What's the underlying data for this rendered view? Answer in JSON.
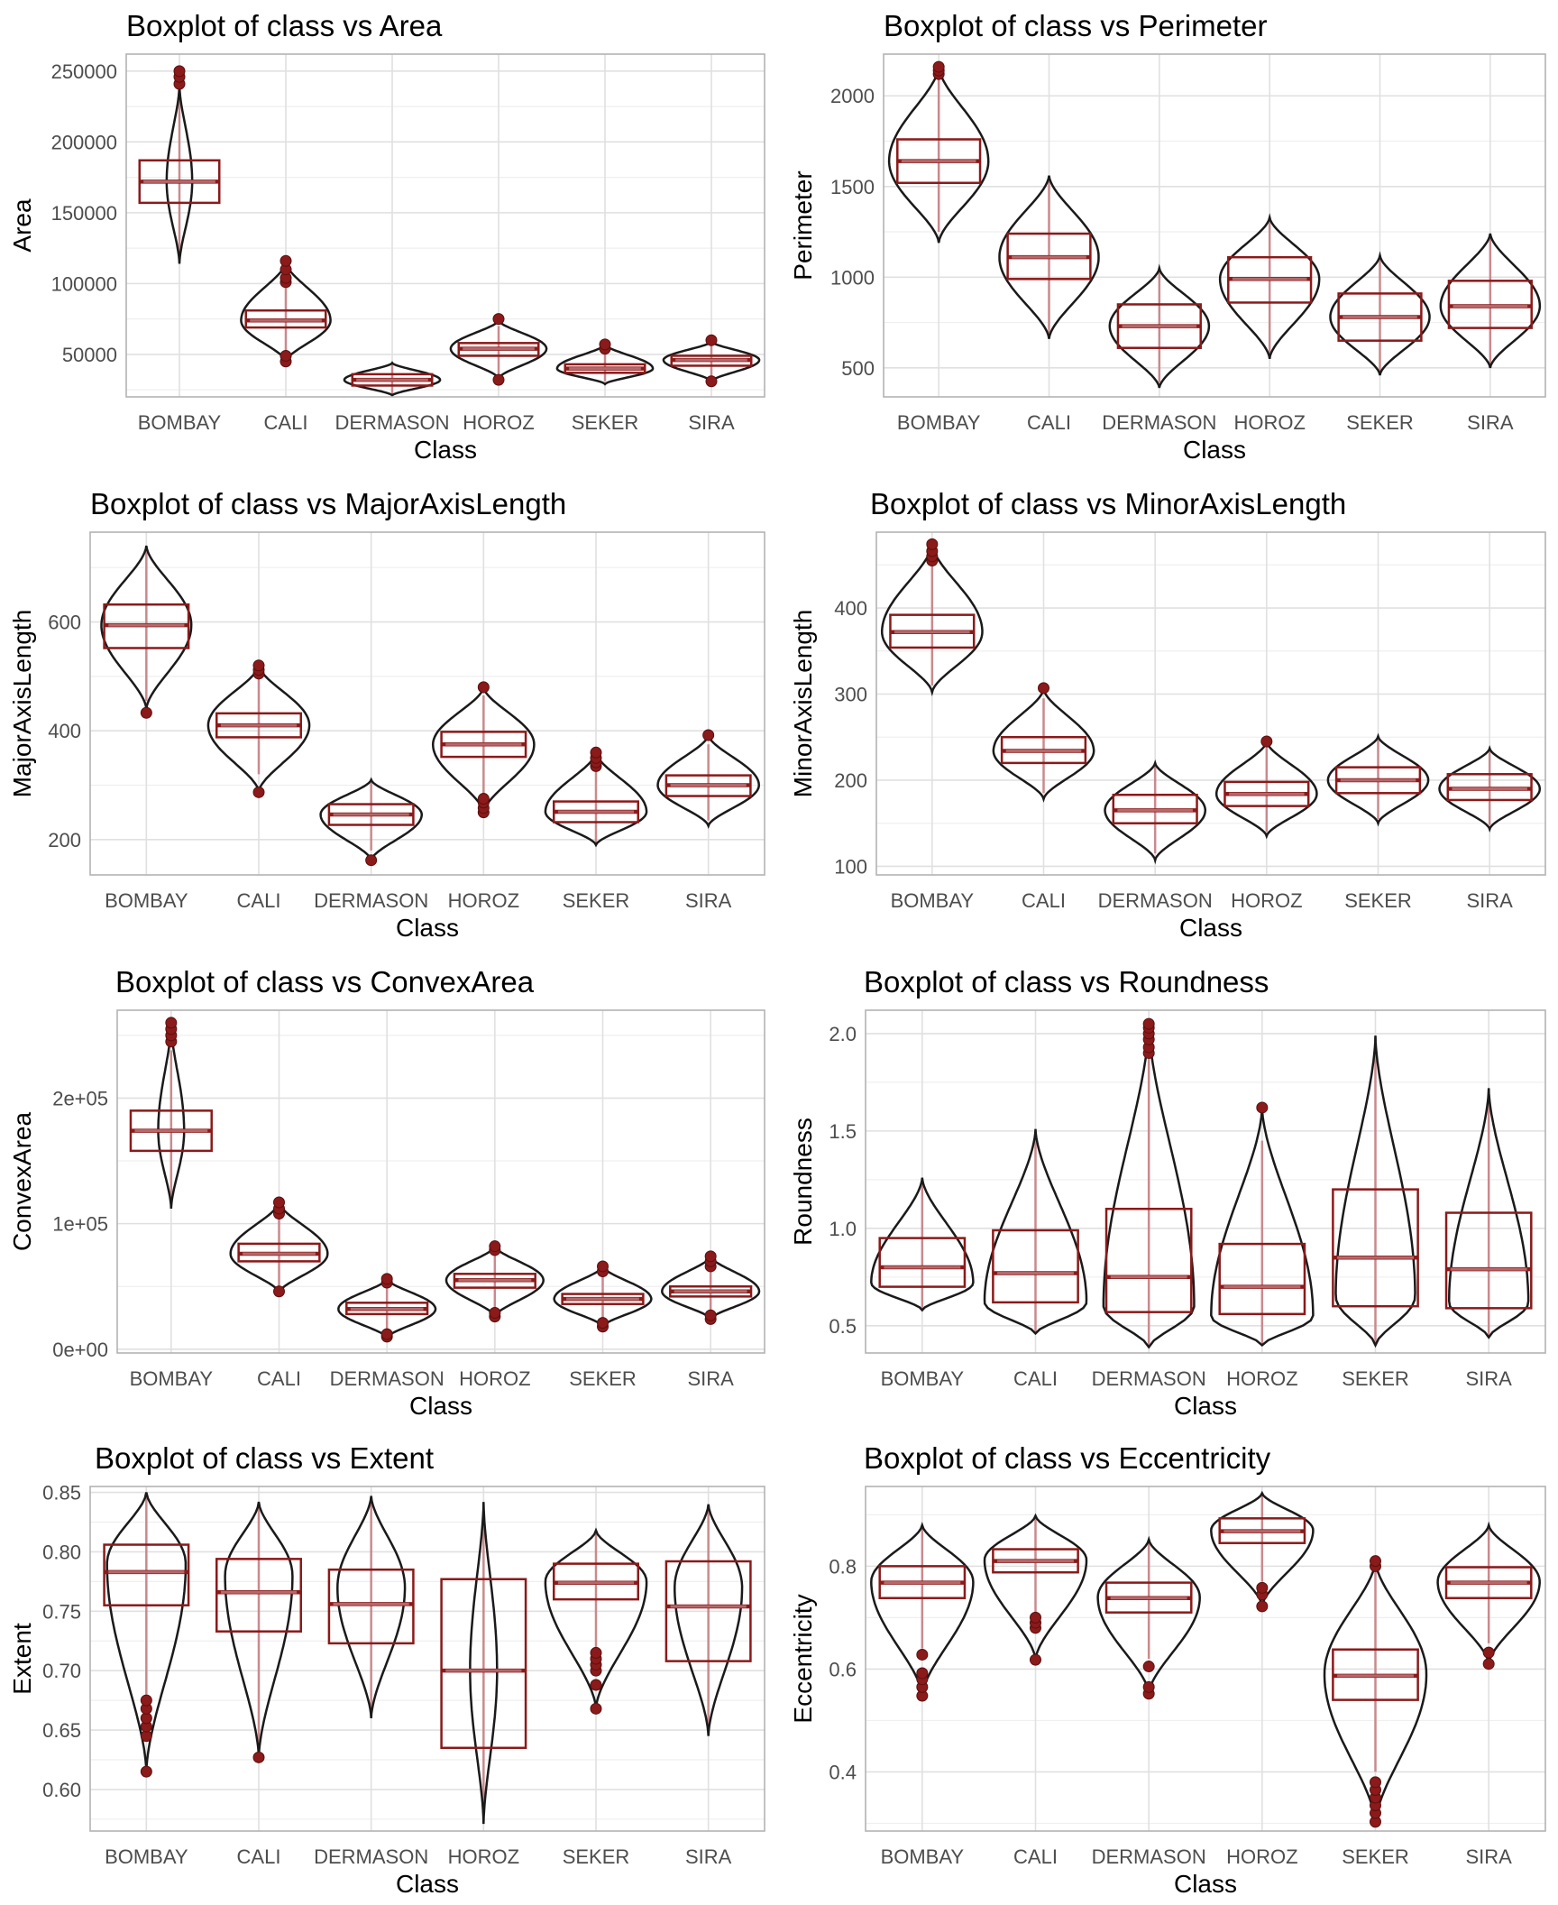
{
  "colors": {
    "box": "#8b1a1a",
    "whisker": "#c98a8e",
    "violin": "#1a1a1a",
    "grid": "#e0e0e0",
    "panel_border": "#b3b3b3"
  },
  "chart_data": [
    {
      "type": "box",
      "title": "Boxplot of class vs Area",
      "xlabel": "Class",
      "ylabel": "Area",
      "categories": [
        "BOMBAY",
        "CALI",
        "DERMASON",
        "HOROZ",
        "SEKER",
        "SIRA"
      ],
      "ylim": [
        20000,
        262000
      ],
      "yticks": [
        50000,
        100000,
        150000,
        200000,
        250000
      ],
      "ytick_labels": [
        "50000",
        "100000",
        "150000",
        "200000",
        "250000"
      ],
      "boxes": [
        {
          "q1": 157000,
          "median": 172000,
          "q3": 187000,
          "whislo": 115000,
          "whishi": 234000,
          "outliers": [
            241000,
            246000,
            250000
          ],
          "vmin": 114000,
          "vmax": 240000,
          "vmode": 172000,
          "vwidth": 0.12
        },
        {
          "q1": 69000,
          "median": 74000,
          "q3": 81000,
          "whislo": 52000,
          "whishi": 100000,
          "outliers": [
            45000,
            49000,
            101000,
            104000,
            110000,
            116000
          ],
          "vmin": 45000,
          "vmax": 115000,
          "vmode": 74000,
          "vwidth": 0.42
        },
        {
          "q1": 28000,
          "median": 32000,
          "q3": 36000,
          "whislo": 21000,
          "whishi": 43000,
          "outliers": [],
          "vmin": 21000,
          "vmax": 44000,
          "vmode": 32000,
          "vwidth": 0.45
        },
        {
          "q1": 49000,
          "median": 54000,
          "q3": 58000,
          "whislo": 35000,
          "whishi": 70000,
          "outliers": [
            32000,
            75000
          ],
          "vmin": 33000,
          "vmax": 74000,
          "vmode": 54000,
          "vwidth": 0.45
        },
        {
          "q1": 37000,
          "median": 40000,
          "q3": 43000,
          "whislo": 31000,
          "whishi": 52000,
          "outliers": [
            54000,
            57000
          ],
          "vmin": 29000,
          "vmax": 57000,
          "vmode": 40000,
          "vwidth": 0.45
        },
        {
          "q1": 42000,
          "median": 46000,
          "q3": 49000,
          "whislo": 33000,
          "whishi": 57000,
          "outliers": [
            31000,
            60000
          ],
          "vmin": 31000,
          "vmax": 59000,
          "vmode": 46000,
          "vwidth": 0.45
        }
      ]
    },
    {
      "type": "box",
      "title": "Boxplot of class vs Perimeter",
      "xlabel": "Class",
      "ylabel": "Perimeter",
      "categories": [
        "BOMBAY",
        "CALI",
        "DERMASON",
        "HOROZ",
        "SEKER",
        "SIRA"
      ],
      "ylim": [
        340,
        2230
      ],
      "yticks": [
        500,
        1000,
        1500,
        2000
      ],
      "ytick_labels": [
        "500",
        "1000",
        "1500",
        "2000"
      ],
      "boxes": [
        {
          "q1": 1520,
          "median": 1640,
          "q3": 1760,
          "whislo": 1250,
          "whishi": 2110,
          "outliers": [
            2120,
            2140,
            2160
          ],
          "vmin": 1190,
          "vmax": 2160,
          "vmode": 1640,
          "vwidth": 0.45
        },
        {
          "q1": 990,
          "median": 1110,
          "q3": 1240,
          "whislo": 690,
          "whishi": 1530,
          "outliers": [],
          "vmin": 660,
          "vmax": 1560,
          "vmode": 1110,
          "vwidth": 0.45
        },
        {
          "q1": 610,
          "median": 730,
          "q3": 850,
          "whislo": 420,
          "whishi": 1040,
          "outliers": [],
          "vmin": 390,
          "vmax": 1050,
          "vmode": 730,
          "vwidth": 0.45
        },
        {
          "q1": 860,
          "median": 990,
          "q3": 1110,
          "whislo": 580,
          "whishi": 1310,
          "outliers": [],
          "vmin": 550,
          "vmax": 1330,
          "vmode": 990,
          "vwidth": 0.45
        },
        {
          "q1": 650,
          "median": 780,
          "q3": 910,
          "whislo": 480,
          "whishi": 1100,
          "outliers": [],
          "vmin": 460,
          "vmax": 1120,
          "vmode": 780,
          "vwidth": 0.45
        },
        {
          "q1": 720,
          "median": 840,
          "q3": 980,
          "whislo": 520,
          "whishi": 1230,
          "outliers": [],
          "vmin": 500,
          "vmax": 1240,
          "vmode": 840,
          "vwidth": 0.45
        }
      ]
    },
    {
      "type": "box",
      "title": "Boxplot of class vs MajorAxisLength",
      "xlabel": "Class",
      "ylabel": "MajorAxisLength",
      "categories": [
        "BOMBAY",
        "CALI",
        "DERMASON",
        "HOROZ",
        "SEKER",
        "SIRA"
      ],
      "ylim": [
        135,
        765
      ],
      "yticks": [
        200,
        400,
        600
      ],
      "ytick_labels": [
        "200",
        "400",
        "600"
      ],
      "boxes": [
        {
          "q1": 552,
          "median": 594,
          "q3": 632,
          "whislo": 455,
          "whishi": 730,
          "outliers": [
            433
          ],
          "vmin": 440,
          "vmax": 740,
          "vmode": 594,
          "vwidth": 0.4
        },
        {
          "q1": 388,
          "median": 410,
          "q3": 432,
          "whislo": 320,
          "whishi": 500,
          "outliers": [
            287,
            505,
            512,
            520
          ],
          "vmin": 288,
          "vmax": 520,
          "vmode": 410,
          "vwidth": 0.45
        },
        {
          "q1": 227,
          "median": 246,
          "q3": 265,
          "whislo": 180,
          "whishi": 305,
          "outliers": [
            162
          ],
          "vmin": 162,
          "vmax": 310,
          "vmode": 246,
          "vwidth": 0.45
        },
        {
          "q1": 352,
          "median": 375,
          "q3": 398,
          "whislo": 285,
          "whishi": 465,
          "outliers": [
            250,
            258,
            268,
            275,
            480
          ],
          "vmin": 250,
          "vmax": 480,
          "vmode": 375,
          "vwidth": 0.45
        },
        {
          "q1": 232,
          "median": 251,
          "q3": 270,
          "whislo": 195,
          "whishi": 325,
          "outliers": [
            335,
            342,
            350,
            360
          ],
          "vmin": 190,
          "vmax": 360,
          "vmode": 251,
          "vwidth": 0.45
        },
        {
          "q1": 280,
          "median": 300,
          "q3": 318,
          "whislo": 235,
          "whishi": 375,
          "outliers": [
            392
          ],
          "vmin": 225,
          "vmax": 392,
          "vmode": 300,
          "vwidth": 0.45
        }
      ]
    },
    {
      "type": "box",
      "title": "Boxplot of class vs MinorAxisLength",
      "xlabel": "Class",
      "ylabel": "MinorAxisLength",
      "categories": [
        "BOMBAY",
        "CALI",
        "DERMASON",
        "HOROZ",
        "SEKER",
        "SIRA"
      ],
      "ylim": [
        90,
        488
      ],
      "yticks": [
        100,
        200,
        300,
        400
      ],
      "ytick_labels": [
        "100",
        "200",
        "300",
        "400"
      ],
      "boxes": [
        {
          "q1": 354,
          "median": 372,
          "q3": 392,
          "whislo": 310,
          "whishi": 450,
          "outliers": [
            455,
            460,
            466,
            474
          ],
          "vmin": 302,
          "vmax": 474,
          "vmode": 372,
          "vwidth": 0.45
        },
        {
          "q1": 220,
          "median": 234,
          "q3": 250,
          "whislo": 185,
          "whishi": 295,
          "outliers": [
            307
          ],
          "vmin": 178,
          "vmax": 306,
          "vmode": 234,
          "vwidth": 0.45
        },
        {
          "q1": 150,
          "median": 165,
          "q3": 183,
          "whislo": 115,
          "whishi": 218,
          "outliers": [],
          "vmin": 107,
          "vmax": 220,
          "vmode": 165,
          "vwidth": 0.45
        },
        {
          "q1": 170,
          "median": 184,
          "q3": 198,
          "whislo": 140,
          "whishi": 240,
          "outliers": [
            245
          ],
          "vmin": 135,
          "vmax": 245,
          "vmode": 184,
          "vwidth": 0.45
        },
        {
          "q1": 185,
          "median": 200,
          "q3": 215,
          "whislo": 155,
          "whishi": 250,
          "outliers": [],
          "vmin": 150,
          "vmax": 251,
          "vmode": 200,
          "vwidth": 0.45
        },
        {
          "q1": 177,
          "median": 190,
          "q3": 207,
          "whislo": 148,
          "whishi": 235,
          "outliers": [],
          "vmin": 143,
          "vmax": 237,
          "vmode": 190,
          "vwidth": 0.45
        }
      ]
    },
    {
      "type": "box",
      "title": "Boxplot of class vs ConvexArea",
      "xlabel": "Class",
      "ylabel": "ConvexArea",
      "categories": [
        "BOMBAY",
        "CALI",
        "DERMASON",
        "HOROZ",
        "SEKER",
        "SIRA"
      ],
      "ylim": [
        -3000,
        270000
      ],
      "yticks": [
        0,
        100000,
        200000
      ],
      "ytick_labels": [
        "0e+00",
        "1e+05",
        "2e+05"
      ],
      "boxes": [
        {
          "q1": 158000,
          "median": 174000,
          "q3": 190000,
          "whislo": 118000,
          "whishi": 238000,
          "outliers": [
            245000,
            250000,
            255000,
            260000
          ],
          "vmin": 112000,
          "vmax": 258000,
          "vmode": 174000,
          "vwidth": 0.12
        },
        {
          "q1": 70000,
          "median": 76000,
          "q3": 84000,
          "whislo": 50000,
          "whishi": 105000,
          "outliers": [
            46000,
            108000,
            112000,
            117000
          ],
          "vmin": 45000,
          "vmax": 117000,
          "vmode": 76000,
          "vwidth": 0.45
        },
        {
          "q1": 28000,
          "median": 32000,
          "q3": 37000,
          "whislo": 15000,
          "whishi": 50000,
          "outliers": [
            10000,
            12000,
            53000,
            56000
          ],
          "vmin": 9000,
          "vmax": 56000,
          "vmode": 32000,
          "vwidth": 0.45
        },
        {
          "q1": 49000,
          "median": 55000,
          "q3": 60000,
          "whislo": 32000,
          "whishi": 75000,
          "outliers": [
            26000,
            29000,
            79000,
            82000
          ],
          "vmin": 26000,
          "vmax": 82000,
          "vmode": 55000,
          "vwidth": 0.45
        },
        {
          "q1": 36000,
          "median": 40000,
          "q3": 44000,
          "whislo": 25000,
          "whishi": 58000,
          "outliers": [
            18000,
            21000,
            62000,
            66000
          ],
          "vmin": 18000,
          "vmax": 66000,
          "vmode": 40000,
          "vwidth": 0.45
        },
        {
          "q1": 42000,
          "median": 46000,
          "q3": 50000,
          "whislo": 30000,
          "whishi": 62000,
          "outliers": [
            24000,
            27000,
            66000,
            70000,
            74000
          ],
          "vmin": 24000,
          "vmax": 74000,
          "vmode": 46000,
          "vwidth": 0.45
        }
      ]
    },
    {
      "type": "box",
      "title": "Boxplot of class vs Roundness",
      "xlabel": "Class",
      "ylabel": "Roundness",
      "categories": [
        "BOMBAY",
        "CALI",
        "DERMASON",
        "HOROZ",
        "SEKER",
        "SIRA"
      ],
      "ylim": [
        0.36,
        2.12
      ],
      "yticks": [
        0.5,
        1.0,
        1.5,
        2.0
      ],
      "ytick_labels": [
        "0.5",
        "1.0",
        "1.5",
        "2.0"
      ],
      "boxes": [
        {
          "q1": 0.7,
          "median": 0.8,
          "q3": 0.95,
          "whislo": 0.58,
          "whishi": 1.25,
          "outliers": [],
          "vmin": 0.58,
          "vmax": 1.26,
          "vmode": 0.72,
          "vwidth": 0.45
        },
        {
          "q1": 0.62,
          "median": 0.77,
          "q3": 0.99,
          "whislo": 0.46,
          "whishi": 1.5,
          "outliers": [],
          "vmin": 0.46,
          "vmax": 1.51,
          "vmode": 0.62,
          "vwidth": 0.45
        },
        {
          "q1": 0.57,
          "median": 0.75,
          "q3": 1.1,
          "whislo": 0.39,
          "whishi": 1.87,
          "outliers": [
            1.9,
            1.93,
            1.97,
            2.0,
            2.03,
            2.05
          ],
          "vmin": 0.39,
          "vmax": 2.05,
          "vmode": 0.6,
          "vwidth": 0.4
        },
        {
          "q1": 0.56,
          "median": 0.7,
          "q3": 0.92,
          "whislo": 0.4,
          "whishi": 1.45,
          "outliers": [
            1.62
          ],
          "vmin": 0.4,
          "vmax": 1.62,
          "vmode": 0.55,
          "vwidth": 0.45
        },
        {
          "q1": 0.6,
          "median": 0.85,
          "q3": 1.2,
          "whislo": 0.4,
          "whishi": 1.98,
          "outliers": [],
          "vmin": 0.4,
          "vmax": 1.99,
          "vmode": 0.65,
          "vwidth": 0.35
        },
        {
          "q1": 0.59,
          "median": 0.79,
          "q3": 1.08,
          "whislo": 0.44,
          "whishi": 1.72,
          "outliers": [],
          "vmin": 0.44,
          "vmax": 1.72,
          "vmode": 0.62,
          "vwidth": 0.35
        }
      ]
    },
    {
      "type": "box",
      "title": "Boxplot of class vs Extent",
      "xlabel": "Class",
      "ylabel": "Extent",
      "categories": [
        "BOMBAY",
        "CALI",
        "DERMASON",
        "HOROZ",
        "SEKER",
        "SIRA"
      ],
      "ylim": [
        0.565,
        0.855
      ],
      "yticks": [
        0.6,
        0.65,
        0.7,
        0.75,
        0.8,
        0.85
      ],
      "ytick_labels": [
        "0.60",
        "0.65",
        "0.70",
        "0.75",
        "0.80",
        "0.85"
      ],
      "boxes": [
        {
          "q1": 0.755,
          "median": 0.783,
          "q3": 0.806,
          "whislo": 0.68,
          "whishi": 0.848,
          "outliers": [
            0.615,
            0.645,
            0.653,
            0.66,
            0.668,
            0.675
          ],
          "vmin": 0.615,
          "vmax": 0.85,
          "vmode": 0.79,
          "vwidth": 0.35
        },
        {
          "q1": 0.733,
          "median": 0.766,
          "q3": 0.794,
          "whislo": 0.63,
          "whishi": 0.84,
          "outliers": [
            0.627
          ],
          "vmin": 0.627,
          "vmax": 0.842,
          "vmode": 0.78,
          "vwidth": 0.3
        },
        {
          "q1": 0.723,
          "median": 0.756,
          "q3": 0.785,
          "whislo": 0.66,
          "whishi": 0.845,
          "outliers": [],
          "vmin": 0.66,
          "vmax": 0.847,
          "vmode": 0.77,
          "vwidth": 0.3
        },
        {
          "q1": 0.635,
          "median": 0.7,
          "q3": 0.777,
          "whislo": 0.573,
          "whishi": 0.84,
          "outliers": [],
          "vmin": 0.571,
          "vmax": 0.842,
          "vmode": 0.7,
          "vwidth": 0.12
        },
        {
          "q1": 0.76,
          "median": 0.774,
          "q3": 0.79,
          "whislo": 0.72,
          "whishi": 0.815,
          "outliers": [
            0.668,
            0.688,
            0.7,
            0.705,
            0.71,
            0.715
          ],
          "vmin": 0.668,
          "vmax": 0.818,
          "vmode": 0.775,
          "vwidth": 0.45
        },
        {
          "q1": 0.708,
          "median": 0.754,
          "q3": 0.792,
          "whislo": 0.648,
          "whishi": 0.838,
          "outliers": [],
          "vmin": 0.645,
          "vmax": 0.84,
          "vmode": 0.77,
          "vwidth": 0.3
        }
      ]
    },
    {
      "type": "box",
      "title": "Boxplot of class vs Eccentricity",
      "xlabel": "Class",
      "ylabel": "Eccentricity",
      "categories": [
        "BOMBAY",
        "CALI",
        "DERMASON",
        "HOROZ",
        "SEKER",
        "SIRA"
      ],
      "ylim": [
        0.285,
        0.955
      ],
      "yticks": [
        0.4,
        0.6,
        0.8
      ],
      "ytick_labels": [
        "0.4",
        "0.6",
        "0.8"
      ],
      "boxes": [
        {
          "q1": 0.738,
          "median": 0.768,
          "q3": 0.8,
          "whislo": 0.64,
          "whishi": 0.878,
          "outliers": [
            0.548,
            0.565,
            0.58,
            0.592,
            0.628
          ],
          "vmin": 0.548,
          "vmax": 0.88,
          "vmode": 0.77,
          "vwidth": 0.45
        },
        {
          "q1": 0.788,
          "median": 0.81,
          "q3": 0.833,
          "whislo": 0.71,
          "whishi": 0.897,
          "outliers": [
            0.618,
            0.68,
            0.69,
            0.7
          ],
          "vmin": 0.618,
          "vmax": 0.898,
          "vmode": 0.812,
          "vwidth": 0.45
        },
        {
          "q1": 0.71,
          "median": 0.738,
          "q3": 0.768,
          "whislo": 0.62,
          "whishi": 0.85,
          "outliers": [
            0.552,
            0.565,
            0.605
          ],
          "vmin": 0.552,
          "vmax": 0.852,
          "vmode": 0.74,
          "vwidth": 0.45
        },
        {
          "q1": 0.845,
          "median": 0.868,
          "q3": 0.893,
          "whislo": 0.77,
          "whishi": 0.94,
          "outliers": [
            0.722,
            0.745,
            0.758
          ],
          "vmin": 0.722,
          "vmax": 0.942,
          "vmode": 0.87,
          "vwidth": 0.45
        },
        {
          "q1": 0.54,
          "median": 0.587,
          "q3": 0.638,
          "whislo": 0.4,
          "whishi": 0.795,
          "outliers": [
            0.303,
            0.32,
            0.335,
            0.35,
            0.365,
            0.38,
            0.8,
            0.81
          ],
          "vmin": 0.3,
          "vmax": 0.81,
          "vmode": 0.59,
          "vwidth": 0.45
        },
        {
          "q1": 0.738,
          "median": 0.768,
          "q3": 0.798,
          "whislo": 0.65,
          "whishi": 0.877,
          "outliers": [
            0.61,
            0.632
          ],
          "vmin": 0.61,
          "vmax": 0.88,
          "vmode": 0.77,
          "vwidth": 0.45
        }
      ]
    }
  ]
}
